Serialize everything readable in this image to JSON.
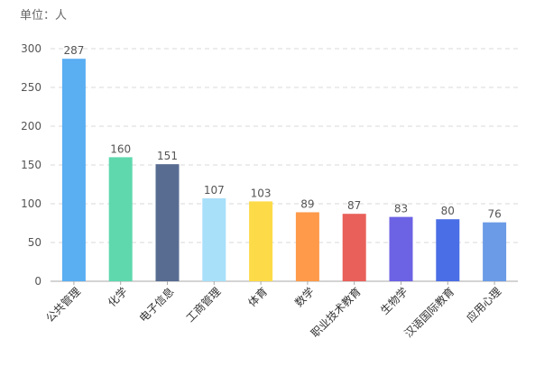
{
  "chart_data": {
    "type": "bar",
    "unit_label": "单位：人",
    "categories": [
      "公共管理",
      "化学",
      "电子信息",
      "工商管理",
      "体育",
      "数学",
      "职业技术教育",
      "生物学",
      "汉语国际教育",
      "应用心理"
    ],
    "values": [
      287,
      160,
      151,
      107,
      103,
      89,
      87,
      83,
      80,
      76
    ],
    "colors": [
      "#5aaef2",
      "#5fd8ae",
      "#586c91",
      "#a8dff9",
      "#fddb48",
      "#fe9a4a",
      "#e9605a",
      "#6c62e4",
      "#4a6ee5",
      "#6b9be6"
    ],
    "ylim": [
      0,
      300
    ],
    "yticks": [
      0,
      50,
      100,
      150,
      200,
      250,
      300
    ],
    "grid": true,
    "legend": "none"
  }
}
